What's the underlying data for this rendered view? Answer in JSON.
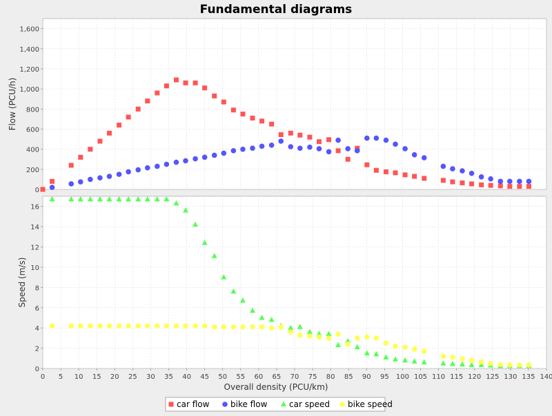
{
  "window": {
    "title": "Fundamental diagrams"
  },
  "chart_data": {
    "type": "scatter",
    "title": "Fundamental diagrams",
    "xlabel": "Overall density (PCU/km)",
    "xlim": [
      0,
      140
    ],
    "xticks": [
      "0",
      "5",
      "10",
      "15",
      "20",
      "25",
      "30",
      "35",
      "40",
      "45",
      "50",
      "55",
      "60",
      "65",
      "70",
      "75",
      "80",
      "85",
      "90",
      "95",
      "100",
      "105",
      "110",
      "115",
      "120",
      "125",
      "130",
      "135",
      "140"
    ],
    "grid": true,
    "legend_position": "bottom",
    "x": [
      0,
      2.6,
      7.9,
      10.5,
      13.2,
      15.9,
      18.5,
      21.2,
      23.8,
      26.5,
      29.1,
      31.8,
      34.4,
      37.1,
      39.7,
      42.4,
      45.0,
      47.7,
      50.3,
      53.0,
      55.6,
      58.3,
      60.9,
      63.6,
      66.2,
      68.9,
      71.5,
      74.2,
      76.8,
      79.5,
      82.1,
      84.8,
      87.4,
      90.1,
      92.7,
      95.4,
      98.0,
      100.7,
      103.3,
      106.0,
      111.3,
      113.9,
      116.6,
      119.2,
      121.9,
      124.5,
      127.2,
      129.8,
      132.5,
      135.1
    ],
    "panels": [
      {
        "ylabel": "Flow (PCU/h)",
        "ylim": [
          0,
          1700
        ],
        "yticks": [
          "0",
          "200",
          "400",
          "600",
          "800",
          "1,000",
          "1,200",
          "1,400",
          "1,600"
        ],
        "series": [
          {
            "name": "car flow",
            "marker": "square",
            "color": "#ff5555",
            "values": [
              0,
              80,
              240,
              320,
              400,
              480,
              560,
              640,
              720,
              800,
              880,
              960,
              1030,
              1090,
              1060,
              1060,
              1010,
              930,
              870,
              790,
              750,
              710,
              680,
              650,
              545,
              560,
              540,
              520,
              475,
              495,
              385,
              300,
              410,
              245,
              190,
              175,
              165,
              145,
              130,
              110,
              90,
              75,
              65,
              55,
              45,
              40,
              35,
              30,
              30,
              30
            ]
          },
          {
            "name": "bike flow",
            "marker": "circle",
            "color": "#5555ff",
            "values": [
              null,
              20,
              55,
              75,
              100,
              115,
              130,
              150,
              175,
              195,
              215,
              230,
              250,
              270,
              285,
              305,
              320,
              340,
              360,
              385,
              400,
              410,
              430,
              440,
              480,
              425,
              410,
              420,
              405,
              375,
              490,
              405,
              385,
              510,
              510,
              490,
              450,
              405,
              345,
              315,
              230,
              205,
              185,
              160,
              125,
              105,
              80,
              80,
              80,
              80
            ]
          }
        ]
      },
      {
        "ylabel": "Speed (m/s)",
        "ylim": [
          0,
          17
        ],
        "yticks": [
          "0",
          "2",
          "4",
          "6",
          "8",
          "10",
          "12",
          "14",
          "16"
        ],
        "series": [
          {
            "name": "car speed",
            "marker": "triangle",
            "color": "#55ff55",
            "values": [
              null,
              16.7,
              16.7,
              16.7,
              16.7,
              16.7,
              16.7,
              16.7,
              16.7,
              16.7,
              16.7,
              16.7,
              16.7,
              16.3,
              15.6,
              14.2,
              12.4,
              11.1,
              9.0,
              7.6,
              6.7,
              5.7,
              5.0,
              4.8,
              4.2,
              4.0,
              4.1,
              3.6,
              3.4,
              3.4,
              2.3,
              2.7,
              2.1,
              1.5,
              1.4,
              1.1,
              0.9,
              0.8,
              0.7,
              0.6,
              0.5,
              0.45,
              0.4,
              0.35,
              0.35,
              0.3,
              0.25,
              0.25,
              0.25,
              0.25
            ]
          },
          {
            "name": "bike speed",
            "marker": "circle",
            "color": "#ffff55",
            "values": [
              null,
              4.2,
              4.2,
              4.2,
              4.2,
              4.2,
              4.2,
              4.2,
              4.2,
              4.2,
              4.2,
              4.2,
              4.2,
              4.2,
              4.2,
              4.2,
              4.2,
              4.1,
              4.1,
              4.1,
              4.1,
              4.1,
              4.1,
              4.0,
              4.1,
              3.6,
              3.3,
              3.2,
              3.1,
              3.0,
              3.4,
              2.4,
              3.0,
              3.1,
              3.0,
              2.5,
              2.2,
              2.1,
              1.9,
              1.7,
              1.2,
              1.1,
              0.95,
              0.8,
              0.65,
              0.5,
              0.4,
              0.35,
              0.35,
              0.35
            ]
          }
        ]
      }
    ]
  }
}
